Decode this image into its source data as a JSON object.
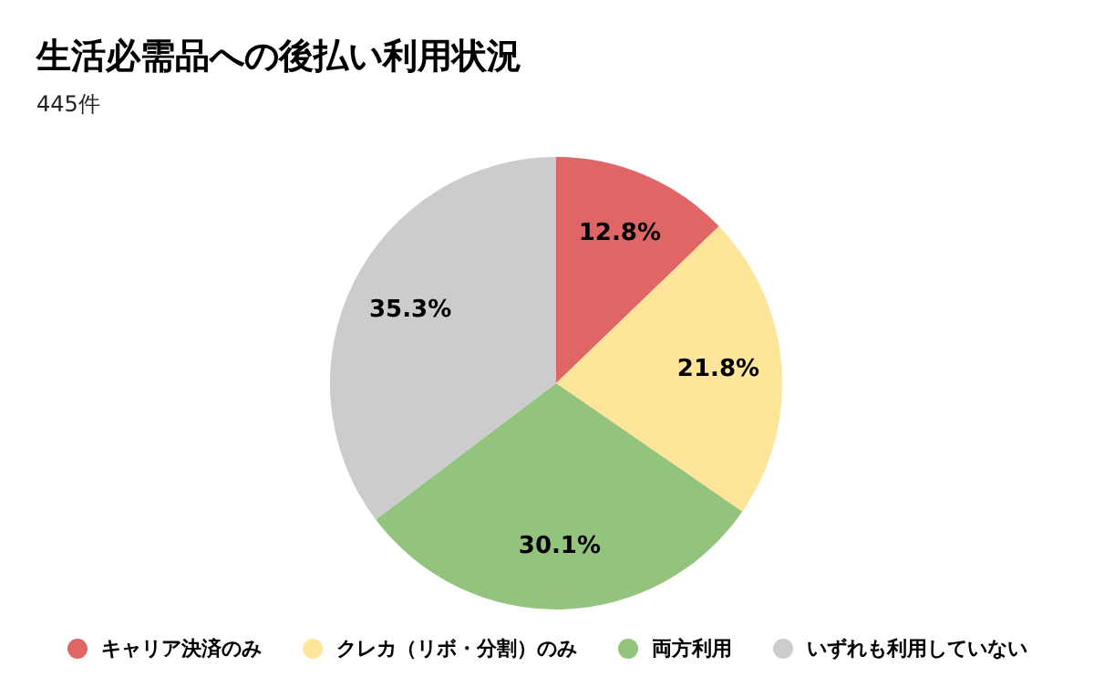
{
  "chart_data": {
    "type": "pie",
    "title": "生活必需品への後払い利用状況",
    "subtitle": "445件",
    "categories": [
      "キャリア決済のみ",
      "クレカ（リボ・分割）のみ",
      "両方利用",
      "いずれも利用していない"
    ],
    "values": [
      12.8,
      21.8,
      30.1,
      35.3
    ],
    "value_labels": [
      "12.8%",
      "21.8%",
      "30.1%",
      "35.3%"
    ],
    "colors": [
      "#e06666",
      "#ffe599",
      "#93c47d",
      "#cccccc"
    ],
    "legend": "bottom"
  }
}
